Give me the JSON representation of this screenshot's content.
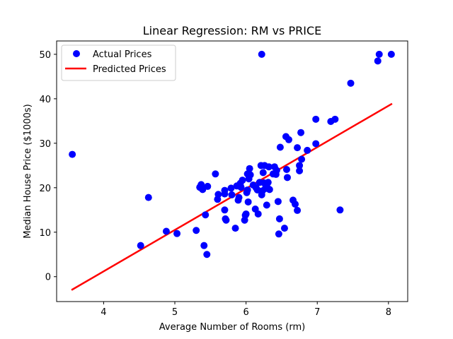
{
  "chart_data": {
    "type": "scatter",
    "title": "Linear Regression: RM vs PRICE",
    "xlabel": "Average Number of Rooms (rm)",
    "ylabel": "Median House Price ($1000s)",
    "xlim": [
      3.34,
      8.27
    ],
    "ylim": [
      -5.6,
      53.0
    ],
    "xticks": [
      "4",
      "5",
      "6",
      "7",
      "8"
    ],
    "yticks": [
      "0",
      "10",
      "20",
      "30",
      "40",
      "50"
    ],
    "grid": false,
    "legend_position": "top-left",
    "series": [
      {
        "name": "Actual Prices",
        "kind": "scatter",
        "color": "#0000ff",
        "points": [
          [
            3.56,
            27.5
          ],
          [
            4.52,
            7.0
          ],
          [
            4.63,
            17.8
          ],
          [
            4.88,
            10.2
          ],
          [
            5.03,
            9.7
          ],
          [
            5.3,
            10.4
          ],
          [
            5.35,
            20.1
          ],
          [
            5.37,
            20.7
          ],
          [
            5.39,
            19.6
          ],
          [
            5.41,
            7.0
          ],
          [
            5.43,
            13.9
          ],
          [
            5.45,
            5.0
          ],
          [
            5.46,
            20.3
          ],
          [
            5.57,
            23.1
          ],
          [
            5.6,
            17.4
          ],
          [
            5.61,
            18.5
          ],
          [
            5.7,
            19.4
          ],
          [
            5.7,
            18.6
          ],
          [
            5.7,
            15.0
          ],
          [
            5.71,
            13.0
          ],
          [
            5.72,
            12.7
          ],
          [
            5.79,
            19.9
          ],
          [
            5.8,
            18.4
          ],
          [
            5.85,
            10.9
          ],
          [
            5.87,
            20.4
          ],
          [
            5.89,
            17.2
          ],
          [
            5.9,
            17.8
          ],
          [
            5.92,
            21.0
          ],
          [
            5.93,
            20.1
          ],
          [
            5.95,
            21.7
          ],
          [
            5.98,
            12.7
          ],
          [
            5.99,
            13.8
          ],
          [
            6.0,
            14.1
          ],
          [
            6.01,
            18.9
          ],
          [
            6.02,
            19.5
          ],
          [
            6.02,
            23.1
          ],
          [
            6.03,
            16.8
          ],
          [
            6.04,
            22.0
          ],
          [
            6.05,
            24.3
          ],
          [
            6.06,
            22.9
          ],
          [
            6.1,
            20.6
          ],
          [
            6.13,
            15.2
          ],
          [
            6.14,
            20.0
          ],
          [
            6.16,
            19.5
          ],
          [
            6.17,
            14.1
          ],
          [
            6.19,
            21.2
          ],
          [
            6.21,
            25.0
          ],
          [
            6.22,
            18.4
          ],
          [
            6.22,
            50.0
          ],
          [
            6.23,
            19.3
          ],
          [
            6.24,
            23.4
          ],
          [
            6.25,
            21.1
          ],
          [
            6.26,
            25.0
          ],
          [
            6.27,
            19.8
          ],
          [
            6.29,
            16.1
          ],
          [
            6.3,
            20.0
          ],
          [
            6.31,
            21.2
          ],
          [
            6.32,
            24.7
          ],
          [
            6.33,
            19.6
          ],
          [
            6.38,
            23.1
          ],
          [
            6.4,
            24.7
          ],
          [
            6.42,
            23.0
          ],
          [
            6.43,
            23.9
          ],
          [
            6.45,
            16.9
          ],
          [
            6.46,
            9.6
          ],
          [
            6.47,
            13.0
          ],
          [
            6.48,
            29.1
          ],
          [
            6.54,
            10.9
          ],
          [
            6.56,
            31.5
          ],
          [
            6.57,
            24.1
          ],
          [
            6.58,
            22.3
          ],
          [
            6.6,
            30.8
          ],
          [
            6.66,
            17.2
          ],
          [
            6.69,
            16.3
          ],
          [
            6.72,
            29.0
          ],
          [
            6.72,
            14.9
          ],
          [
            6.75,
            23.8
          ],
          [
            6.75,
            25.0
          ],
          [
            6.77,
            32.4
          ],
          [
            6.78,
            26.4
          ],
          [
            6.86,
            28.4
          ],
          [
            6.98,
            35.4
          ],
          [
            6.98,
            29.9
          ],
          [
            7.19,
            34.9
          ],
          [
            7.25,
            35.4
          ],
          [
            7.32,
            15.0
          ],
          [
            7.47,
            43.5
          ],
          [
            7.85,
            48.5
          ],
          [
            7.87,
            50.0
          ],
          [
            8.04,
            50.0
          ]
        ]
      },
      {
        "name": "Predicted Prices",
        "kind": "line",
        "color": "#ff0000",
        "points": [
          [
            3.56,
            -2.9
          ],
          [
            8.04,
            38.8
          ]
        ]
      }
    ]
  }
}
